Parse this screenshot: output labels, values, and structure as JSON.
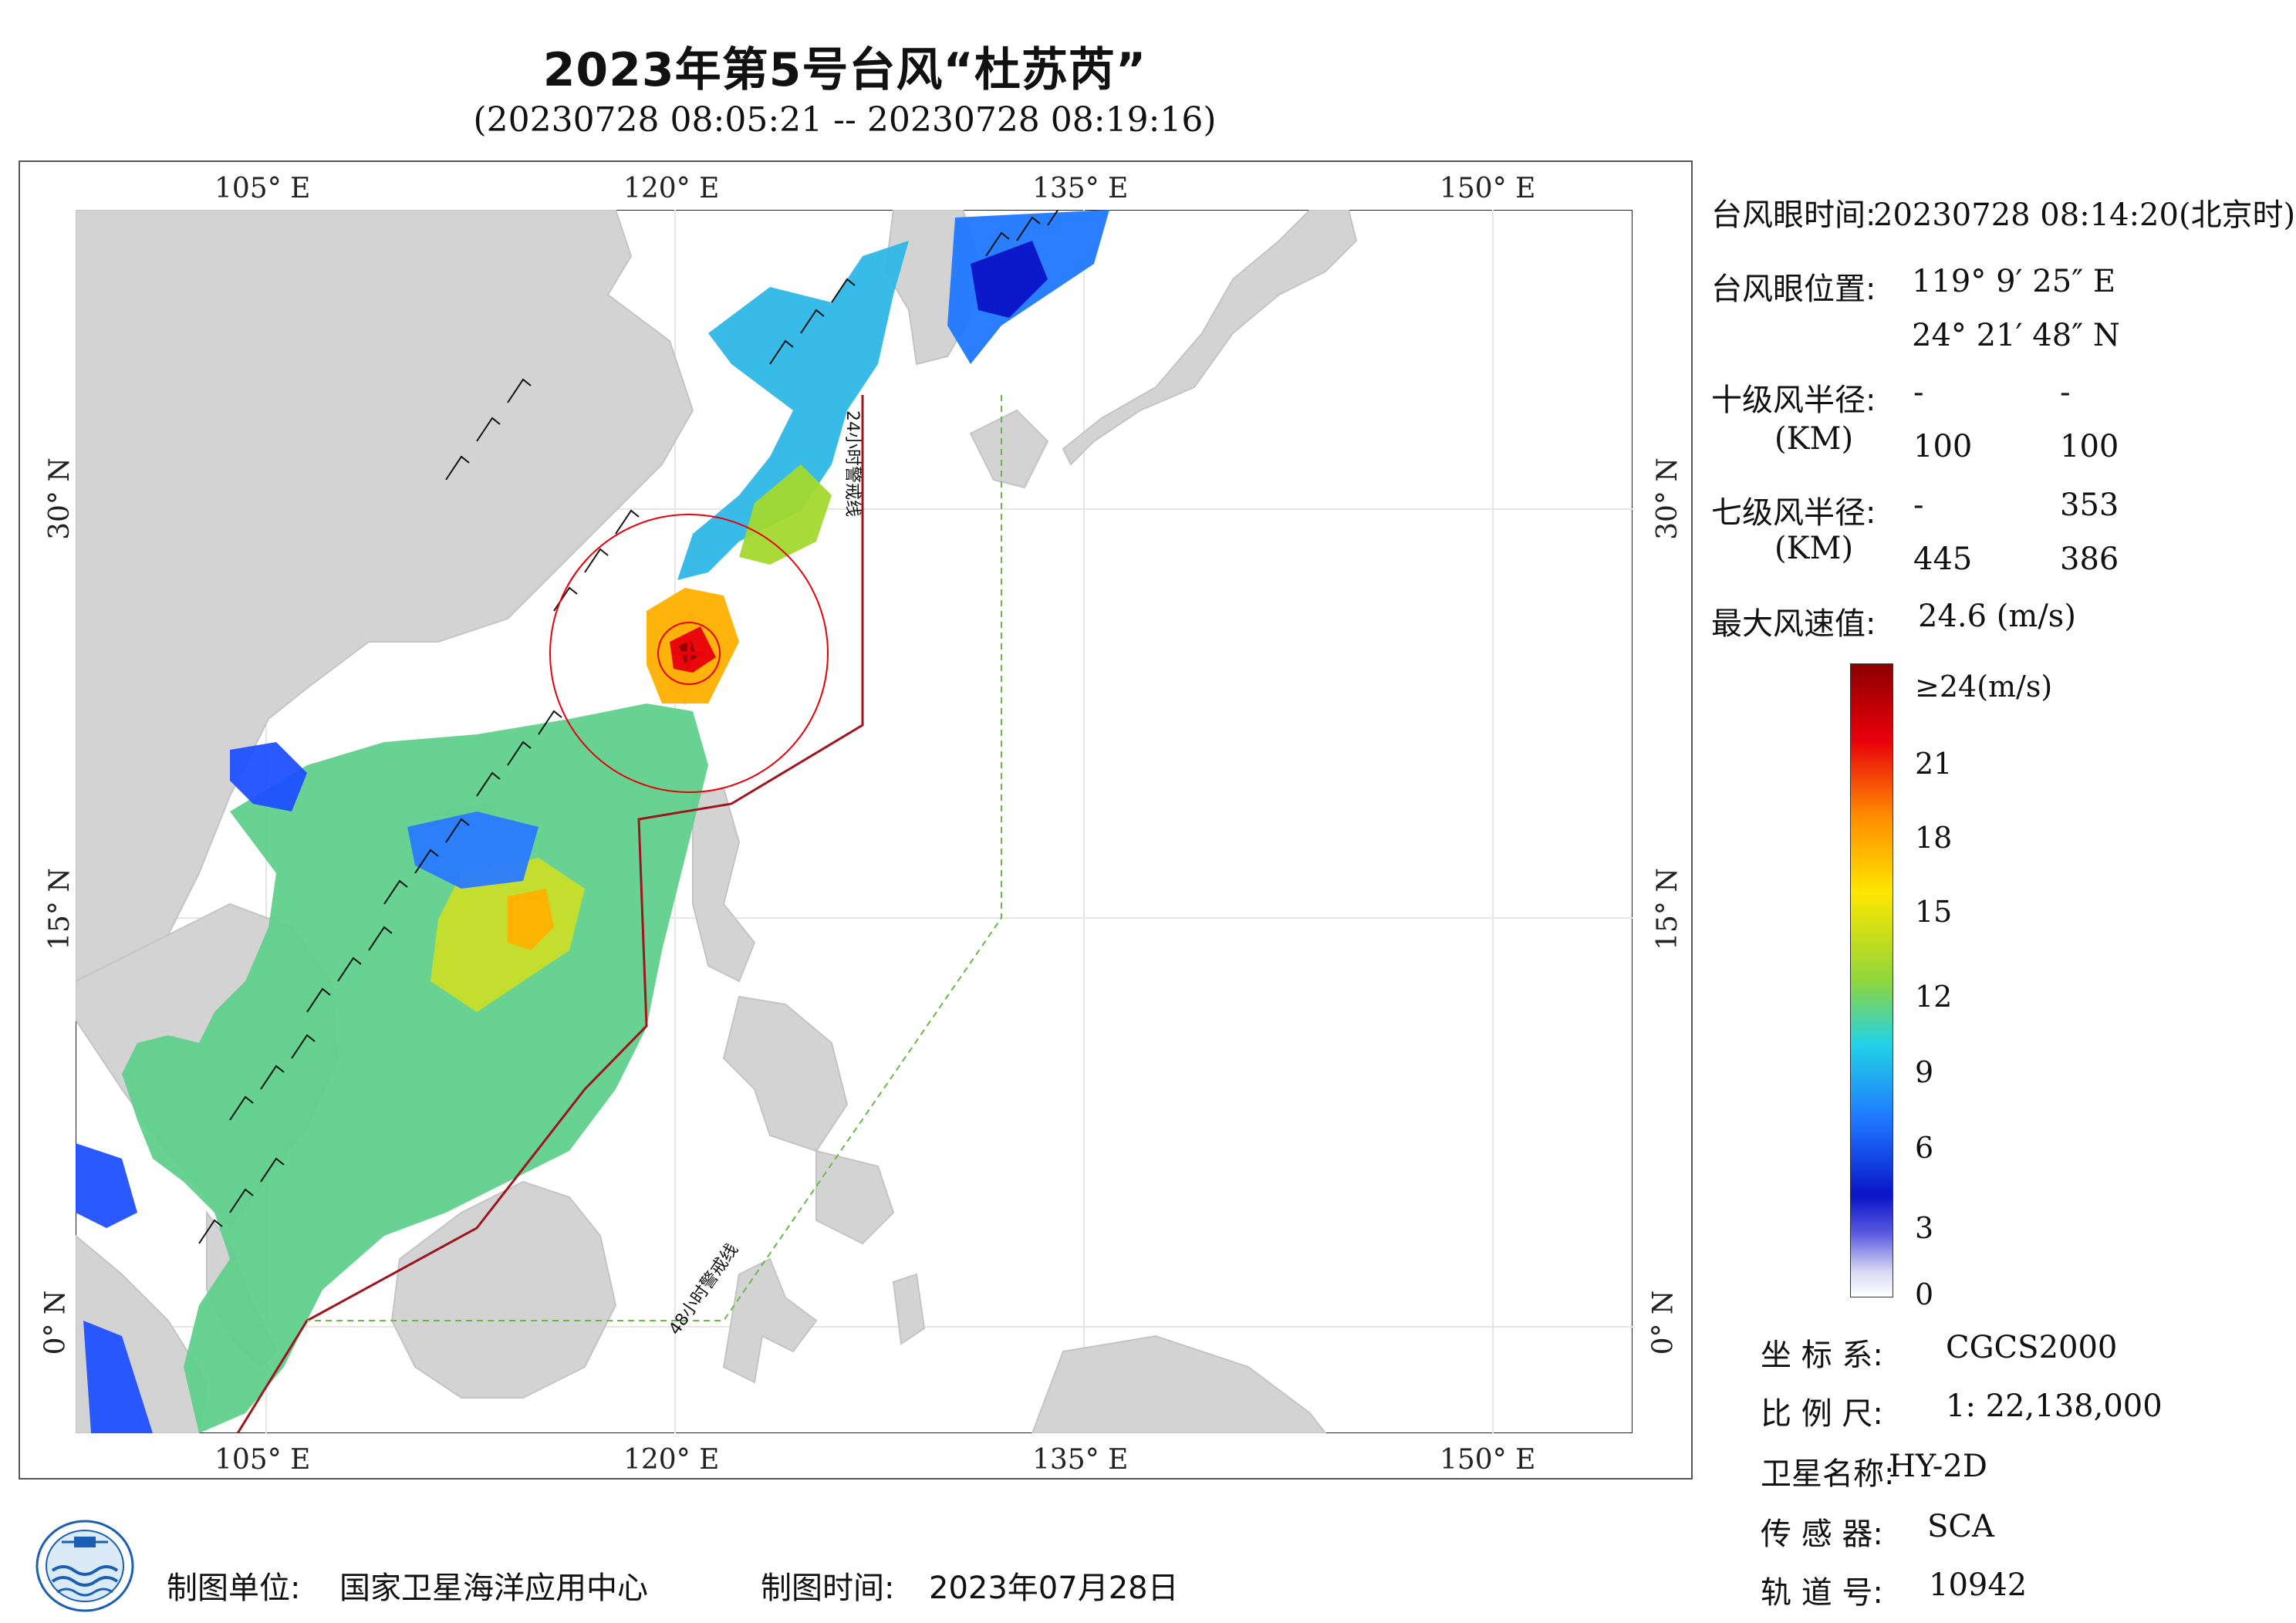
{
  "title": "2023年第5号台风“杜苏芮”",
  "subtitle": "(20230728 08:05:21 -- 20230728 08:19:16)",
  "map": {
    "lon_labels": [
      "105° E",
      "120° E",
      "135° E",
      "150° E"
    ],
    "lat_labels": [
      "30° N",
      "15° N",
      "0° N"
    ],
    "lon_range": [
      98,
      155
    ],
    "lat_range": [
      -4,
      41
    ],
    "warning_24h": "24小时警戒线",
    "warning_48h": "48小时警戒线",
    "colors": {
      "land": "#d3d3d3",
      "ocean": "#ffffff",
      "warning_24h": "#a0141e",
      "warning_48h": "#66bb44",
      "typhoon_mark": "#e8000b"
    }
  },
  "info_panel": {
    "eye_time_label": "台风眼时间:",
    "eye_time_value": "20230728 08:14:20(北京时)",
    "eye_pos_label": "台风眼位置:",
    "eye_lon": "119° 9′ 25″ E",
    "eye_lat": "24° 21′ 48″ N",
    "r10_label": "十级风半径:",
    "km_label": "(KM)",
    "r10_values": [
      "-",
      "-",
      "100",
      "100"
    ],
    "r7_label": "七级风半径:",
    "r7_values": [
      "-",
      "353",
      "445",
      "386"
    ],
    "max_wind_label": "最大风速值:",
    "max_wind_value": "24.6 (m/s)"
  },
  "colorbar": {
    "labels": [
      "≥24(m/s)",
      "21",
      "18",
      "15",
      "12",
      "9",
      "6",
      "3",
      "0"
    ],
    "colors": [
      "#8b0000",
      "#e8000b",
      "#ff8c00",
      "#ffe600",
      "#8fd63a",
      "#22d3e6",
      "#1e78ff",
      "#0a14c8",
      "#ffffff"
    ]
  },
  "meta": {
    "crs_label": "坐 标 系:",
    "crs_value": "CGCS2000",
    "scale_label": "比 例 尺:",
    "scale_value": "1: 22,138,000",
    "satellite_label": "卫星名称:",
    "satellite_value": "HY-2D",
    "sensor_label": "传 感 器:",
    "sensor_value": "SCA",
    "orbit_label": "轨 道 号:",
    "orbit_value": "10942"
  },
  "footer": {
    "producer_label": "制图单位:",
    "producer_value": "国家卫星海洋应用中心",
    "date_label": "制图时间:",
    "date_value": "2023年07月28日"
  }
}
